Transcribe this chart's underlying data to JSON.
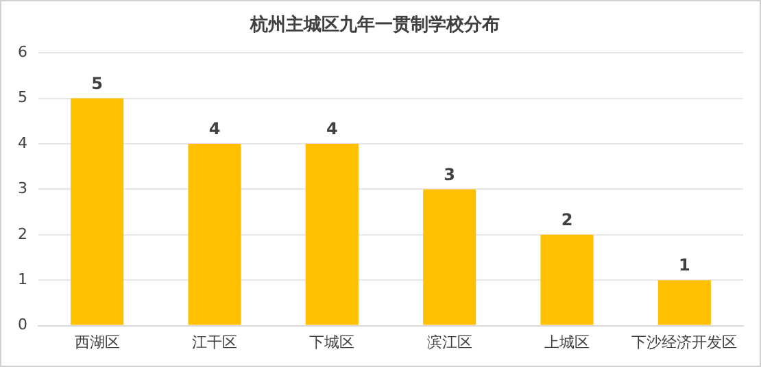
{
  "chart_data": {
    "type": "bar",
    "title": "杭州主城区九年一贯制学校分布",
    "categories": [
      "西湖区",
      "江干区",
      "下城区",
      "滨江区",
      "上城区",
      "下沙经济开发区"
    ],
    "values": [
      5,
      4,
      4,
      3,
      2,
      1
    ],
    "color": "#ffc000",
    "ylim": [
      0,
      6
    ],
    "yticks": [
      0,
      1,
      2,
      3,
      4,
      5,
      6
    ],
    "grid": "y",
    "data_labels": true
  }
}
